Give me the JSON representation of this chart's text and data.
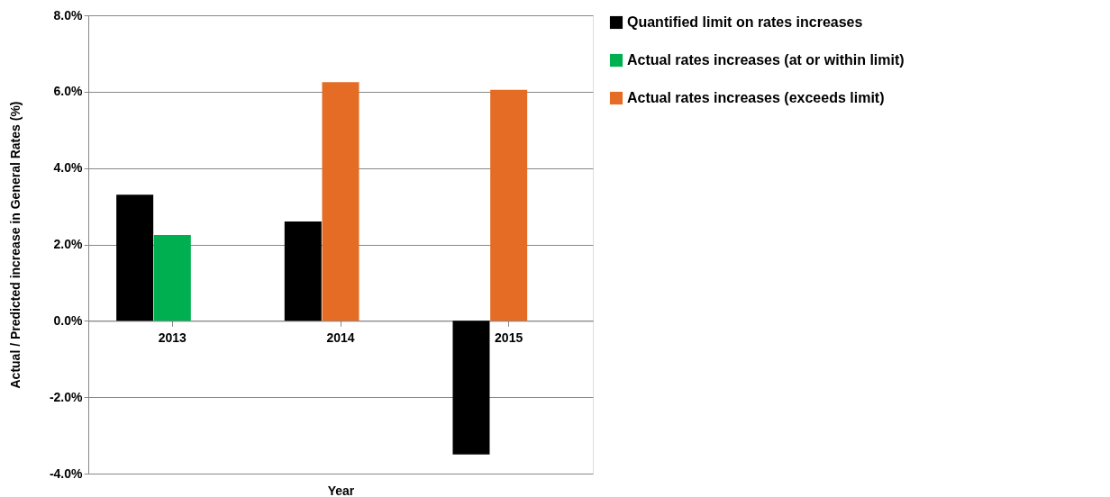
{
  "chart_data": {
    "type": "bar",
    "xlabel": "Year",
    "ylabel": "Actual / Predicted increase in General Rates (%)",
    "categories": [
      "2013",
      "2014",
      "2015"
    ],
    "series": [
      {
        "name": "Quantified limit on rates increases",
        "color": "#000000",
        "values": [
          3.3,
          2.6,
          -3.5
        ]
      },
      {
        "name": "Actual rates increases (at or within limit)",
        "color": "#00b050",
        "values": [
          2.25,
          null,
          null
        ]
      },
      {
        "name": "Actual rates increases (exceeds limit)",
        "color": "#e46c25",
        "values": [
          null,
          6.25,
          6.05
        ]
      }
    ],
    "ylim": [
      -4,
      8
    ],
    "yticks": [
      {
        "value": -4,
        "label": "-4.0%"
      },
      {
        "value": -2,
        "label": "-2.0%"
      },
      {
        "value": 0,
        "label": "0.0%"
      },
      {
        "value": 2,
        "label": "2.0%"
      },
      {
        "value": 4,
        "label": "4.0%"
      },
      {
        "value": 6,
        "label": "6.0%"
      },
      {
        "value": 8,
        "label": "8.0%"
      }
    ],
    "grid": "y",
    "legend": "right"
  }
}
